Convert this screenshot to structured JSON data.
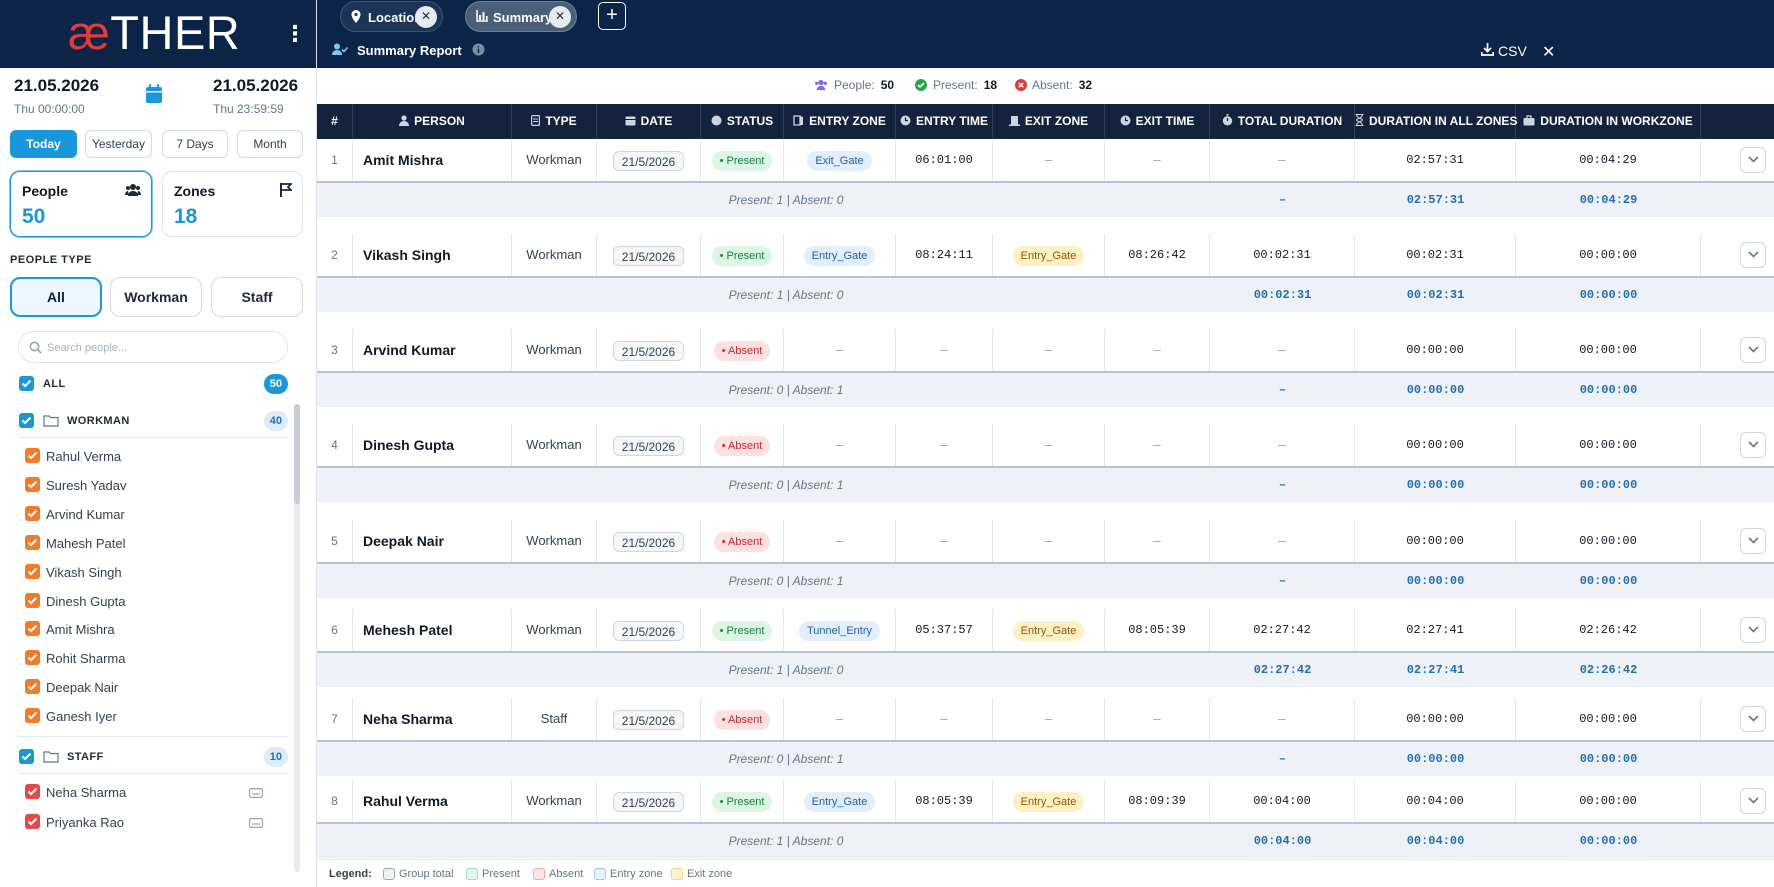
{
  "brand": {
    "logo_ae": "æ",
    "logo_rest": "THER"
  },
  "date_range": {
    "start_date": "21.05.2026",
    "start_time": "Thu 00:00:00",
    "end_date": "21.05.2026",
    "end_time": "Thu 23:59:59"
  },
  "quick_ranges": [
    "Today",
    "Yesterday",
    "7 Days",
    "Month"
  ],
  "cards": {
    "people": {
      "label": "People",
      "value": "50"
    },
    "zones": {
      "label": "Zones",
      "value": "18"
    }
  },
  "people_type": {
    "label": "PEOPLE TYPE",
    "options": [
      "All",
      "Workman",
      "Staff"
    ]
  },
  "search": {
    "placeholder": "Search people..."
  },
  "people_list": {
    "all": {
      "label": "ALL",
      "count": "50"
    },
    "workman": {
      "label": "WORKMAN",
      "count": "40",
      "members": [
        "Rahul Verma",
        "Suresh Yadav",
        "Arvind Kumar",
        "Mahesh Patel",
        "Vikash Singh",
        "Dinesh Gupta",
        "Amit Mishra",
        "Rohit Sharma",
        "Deepak Nair",
        "Ganesh Iyer"
      ]
    },
    "staff": {
      "label": "STAFF",
      "count": "10",
      "members": [
        "Neha Sharma",
        "Priyanka Rao"
      ]
    }
  },
  "tabs": [
    {
      "label": "Location"
    },
    {
      "label": "Summary"
    }
  ],
  "header": {
    "title": "Summary Report",
    "csv_label": "CSV"
  },
  "stats": {
    "people_label": "People:",
    "people_value": "50",
    "present_label": "Present:",
    "present_value": "18",
    "absent_label": "Absent:",
    "absent_value": "32"
  },
  "columns": [
    "#",
    "PERSON",
    "TYPE",
    "DATE",
    "STATUS",
    "ENTRY ZONE",
    "ENTRY TIME",
    "EXIT ZONE",
    "EXIT TIME",
    "TOTAL DURATION",
    "DURATION IN ALL ZONES",
    "DURATION IN WORKZONE"
  ],
  "rows": [
    {
      "n": "1",
      "person": "Amit Mishra",
      "type": "Workman",
      "date": "21/5/2026",
      "status": "Present",
      "entry_zone": "Exit_Gate",
      "entry_time": "06:01:00",
      "exit_zone": "–",
      "exit_time": "–",
      "total": "–",
      "all_zones": "02:57:31",
      "workzone": "00:04:29",
      "group": {
        "label": "Present: 1 | Absent: 0",
        "total": "–",
        "all_zones": "02:57:31",
        "workzone": "00:04:29"
      }
    },
    {
      "n": "2",
      "person": "Vikash Singh",
      "type": "Workman",
      "date": "21/5/2026",
      "status": "Present",
      "entry_zone": "Entry_Gate",
      "entry_time": "08:24:11",
      "exit_zone": "Entry_Gate",
      "exit_time": "08:26:42",
      "total": "00:02:31",
      "all_zones": "00:02:31",
      "workzone": "00:00:00",
      "group": {
        "label": "Present: 1 | Absent: 0",
        "total": "00:02:31",
        "all_zones": "00:02:31",
        "workzone": "00:00:00"
      }
    },
    {
      "n": "3",
      "person": "Arvind Kumar",
      "type": "Workman",
      "date": "21/5/2026",
      "status": "Absent",
      "entry_zone": "–",
      "entry_time": "–",
      "exit_zone": "–",
      "exit_time": "–",
      "total": "–",
      "all_zones": "00:00:00",
      "workzone": "00:00:00",
      "group": {
        "label": "Present: 0 | Absent: 1",
        "total": "–",
        "all_zones": "00:00:00",
        "workzone": "00:00:00"
      }
    },
    {
      "n": "4",
      "person": "Dinesh Gupta",
      "type": "Workman",
      "date": "21/5/2026",
      "status": "Absent",
      "entry_zone": "–",
      "entry_time": "–",
      "exit_zone": "–",
      "exit_time": "–",
      "total": "–",
      "all_zones": "00:00:00",
      "workzone": "00:00:00",
      "group": {
        "label": "Present: 0 | Absent: 1",
        "total": "–",
        "all_zones": "00:00:00",
        "workzone": "00:00:00"
      }
    },
    {
      "n": "5",
      "person": "Deepak Nair",
      "type": "Workman",
      "date": "21/5/2026",
      "status": "Absent",
      "entry_zone": "–",
      "entry_time": "–",
      "exit_zone": "–",
      "exit_time": "–",
      "total": "–",
      "all_zones": "00:00:00",
      "workzone": "00:00:00",
      "group": {
        "label": "Present: 0 | Absent: 1",
        "total": "–",
        "all_zones": "00:00:00",
        "workzone": "00:00:00"
      }
    },
    {
      "n": "6",
      "person": "Mehesh Patel",
      "type": "Workman",
      "date": "21/5/2026",
      "status": "Present",
      "entry_zone": "Tunnel_Entry",
      "entry_time": "05:37:57",
      "exit_zone": "Entry_Gate",
      "exit_time": "08:05:39",
      "total": "02:27:42",
      "all_zones": "02:27:41",
      "workzone": "02:26:42",
      "group": {
        "label": "Present: 1 | Absent: 0",
        "total": "02:27:42",
        "all_zones": "02:27:41",
        "workzone": "02:26:42"
      }
    },
    {
      "n": "7",
      "person": "Neha Sharma",
      "type": "Staff",
      "date": "21/5/2026",
      "status": "Absent",
      "entry_zone": "–",
      "entry_time": "–",
      "exit_zone": "–",
      "exit_time": "–",
      "total": "–",
      "all_zones": "00:00:00",
      "workzone": "00:00:00",
      "group": {
        "label": "Present: 0 | Absent: 1",
        "total": "–",
        "all_zones": "00:00:00",
        "workzone": "00:00:00"
      }
    },
    {
      "n": "8",
      "person": "Rahul Verma",
      "type": "Workman",
      "date": "21/5/2026",
      "status": "Present",
      "entry_zone": "Entry_Gate",
      "entry_time": "08:05:39",
      "exit_zone": "Entry_Gate",
      "exit_time": "08:09:39",
      "total": "00:04:00",
      "all_zones": "00:04:00",
      "workzone": "00:00:00",
      "group": {
        "label": "Present: 1 | Absent: 0",
        "total": "00:04:00",
        "all_zones": "00:04:00",
        "workzone": "00:00:00"
      }
    }
  ],
  "legend": {
    "title": "Legend:",
    "items": [
      "Group total",
      "Present",
      "Absent",
      "Entry zone",
      "Exit zone"
    ]
  },
  "colors": {
    "navy": "#0b2447",
    "accent": "#1a97db",
    "present": "#17803d",
    "absent": "#c62828"
  }
}
